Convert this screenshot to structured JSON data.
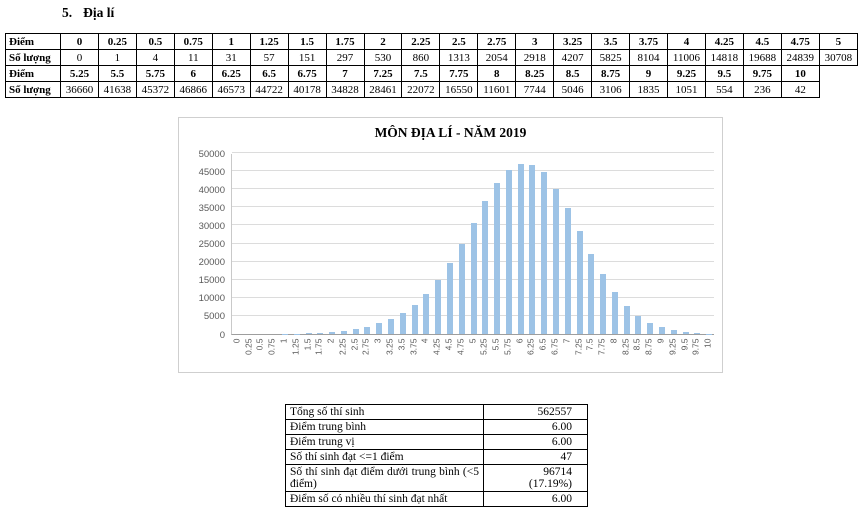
{
  "heading": {
    "number": "5.",
    "title": "Địa lí"
  },
  "score_table": {
    "rows": [
      {
        "header": "Điểm",
        "bold": true,
        "values": [
          "0",
          "0.25",
          "0.5",
          "0.75",
          "1",
          "1.25",
          "1.5",
          "1.75",
          "2",
          "2.25",
          "2.5",
          "2.75",
          "3",
          "3.25",
          "3.5",
          "3.75",
          "4",
          "4.25",
          "4.5",
          "4.75",
          "5"
        ]
      },
      {
        "header": "Số lượng",
        "bold": false,
        "values": [
          "0",
          "1",
          "4",
          "11",
          "31",
          "57",
          "151",
          "297",
          "530",
          "860",
          "1313",
          "2054",
          "2918",
          "4207",
          "5825",
          "8104",
          "11006",
          "14818",
          "19688",
          "24839",
          "30708"
        ]
      },
      {
        "header": "Điểm",
        "bold": true,
        "values": [
          "5.25",
          "5.5",
          "5.75",
          "6",
          "6.25",
          "6.5",
          "6.75",
          "7",
          "7.25",
          "7.5",
          "7.75",
          "8",
          "8.25",
          "8.5",
          "8.75",
          "9",
          "9.25",
          "9.5",
          "9.75",
          "10"
        ]
      },
      {
        "header": "Số lượng",
        "bold": false,
        "values": [
          "36660",
          "41638",
          "45372",
          "46866",
          "46573",
          "44722",
          "40178",
          "34828",
          "28461",
          "22072",
          "16550",
          "11601",
          "7744",
          "5046",
          "3106",
          "1835",
          "1051",
          "554",
          "236",
          "42"
        ]
      }
    ]
  },
  "chart_data": {
    "type": "bar",
    "title": "MÔN ĐỊA LÍ - NĂM 2019",
    "categories": [
      "0",
      "0.25",
      "0.5",
      "0.75",
      "1",
      "1.25",
      "1.5",
      "1.75",
      "2",
      "2.25",
      "2.5",
      "2.75",
      "3",
      "3.25",
      "3.5",
      "3.75",
      "4",
      "4.25",
      "4.5",
      "4.75",
      "5",
      "5.25",
      "5.5",
      "5.75",
      "6",
      "6.25",
      "6.5",
      "6.75",
      "7",
      "7.25",
      "7.5",
      "7.75",
      "8",
      "8.25",
      "8.5",
      "8.75",
      "9",
      "9.25",
      "9.5",
      "9.75",
      "10"
    ],
    "values": [
      0,
      1,
      4,
      11,
      31,
      57,
      151,
      297,
      530,
      860,
      1313,
      2054,
      2918,
      4207,
      5825,
      8104,
      11006,
      14818,
      19688,
      24839,
      30708,
      36660,
      41638,
      45372,
      46866,
      46573,
      44722,
      40178,
      34828,
      28461,
      22072,
      16550,
      11601,
      7744,
      5046,
      3106,
      1835,
      1051,
      554,
      236,
      42
    ],
    "xlabel": "",
    "ylabel": "",
    "ylim": [
      0,
      50000
    ],
    "yticks": [
      0,
      5000,
      10000,
      15000,
      20000,
      25000,
      30000,
      35000,
      40000,
      45000,
      50000
    ],
    "grid": true,
    "legend": false,
    "bar_color": "#9dc3e6"
  },
  "summary_table": {
    "rows": [
      {
        "label": "Tổng số thí sinh",
        "value": "562557"
      },
      {
        "label": "Điểm trung bình",
        "value": "6.00"
      },
      {
        "label": "Điểm trung vị",
        "value": "6.00"
      },
      {
        "label": "Số thí sinh đạt <=1 điểm",
        "value": "47"
      },
      {
        "label": "Số thí sinh đạt điểm dưới trung bình (<5 điểm)",
        "value": "96714\n(17.19%)"
      },
      {
        "label": "Điểm số có nhiều thí sinh đạt nhất",
        "value": "6.00"
      }
    ]
  }
}
